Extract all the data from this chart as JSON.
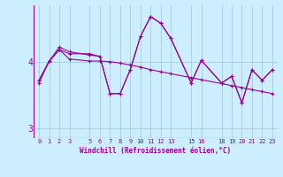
{
  "xlabel": "Windchill (Refroidissement éolien,°C)",
  "bg_color": "#cceeff",
  "line_color": "#990099",
  "grid_color": "#99bbcc",
  "ylim": [
    2.85,
    4.85
  ],
  "xlim": [
    -0.5,
    23.5
  ],
  "yticks": [
    3,
    4
  ],
  "xticks": [
    0,
    1,
    2,
    3,
    5,
    6,
    7,
    8,
    9,
    10,
    11,
    12,
    13,
    15,
    16,
    18,
    19,
    20,
    21,
    22,
    23
  ],
  "lines": [
    {
      "x": [
        0,
        1,
        2,
        3,
        5,
        6,
        7,
        8,
        9,
        10,
        11,
        12,
        13,
        15,
        16,
        18,
        19,
        20,
        21,
        22,
        23
      ],
      "y": [
        3.72,
        4.01,
        4.18,
        4.04,
        4.01,
        4.01,
        4.0,
        3.98,
        3.95,
        3.92,
        3.88,
        3.85,
        3.82,
        3.76,
        3.73,
        3.67,
        3.64,
        3.61,
        3.58,
        3.55,
        3.52
      ]
    },
    {
      "x": [
        0,
        1,
        2,
        3,
        5,
        6,
        7,
        8,
        9,
        10,
        11,
        12,
        13,
        15,
        16,
        18,
        19,
        20,
        21,
        22,
        23
      ],
      "y": [
        3.72,
        4.01,
        4.18,
        4.12,
        4.12,
        4.08,
        3.52,
        3.52,
        3.88,
        4.38,
        4.68,
        4.58,
        4.35,
        3.68,
        4.02,
        3.68,
        3.78,
        3.38,
        3.88,
        3.72,
        3.88
      ]
    },
    {
      "x": [
        0,
        1,
        2,
        3,
        5,
        6,
        7,
        8,
        9,
        10,
        11,
        12,
        13,
        15,
        16,
        18,
        19,
        20,
        21,
        22,
        23
      ],
      "y": [
        3.68,
        4.01,
        4.22,
        4.15,
        4.1,
        4.08,
        3.52,
        3.52,
        3.88,
        4.38,
        4.68,
        4.58,
        4.35,
        3.68,
        4.02,
        3.68,
        3.78,
        3.38,
        3.88,
        3.72,
        3.88
      ]
    }
  ]
}
